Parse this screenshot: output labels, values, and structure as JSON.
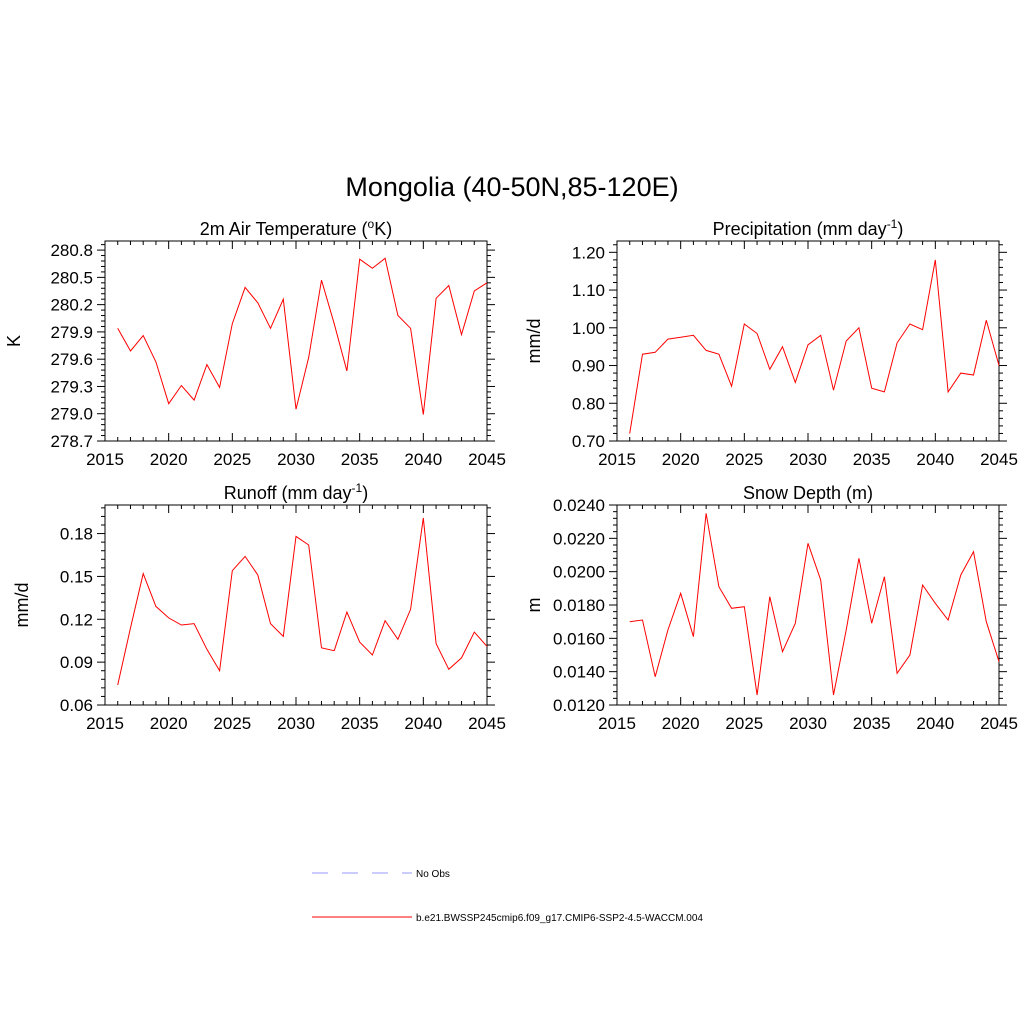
{
  "figure": {
    "title": "Mongolia (40-50N,85-120E)"
  },
  "legend": [
    {
      "label": "No Obs",
      "color": "#9999ff",
      "dash": "dashed"
    },
    {
      "label": "b.e21.BWSSP245cmip6.f09_g17.CMIP6-SSP2-4.5-WACCM.004",
      "color": "#ff0000",
      "dash": "solid"
    }
  ],
  "chart_data": [
    {
      "id": "temperature",
      "type": "line",
      "title": "2m Air Temperature",
      "title_parts": [
        "2m Air Temperature (",
        "o",
        "K)"
      ],
      "ylabel": "K",
      "xlim": [
        2015,
        2045
      ],
      "ylim": [
        278.7,
        280.9
      ],
      "xticks": [
        2015,
        2020,
        2025,
        2030,
        2035,
        2040,
        2045
      ],
      "yticks": [
        278.7,
        279.0,
        279.3,
        279.6,
        279.9,
        280.2,
        280.5,
        280.8
      ],
      "yticklabels": [
        "278.7",
        "279.0",
        "279.3",
        "279.6",
        "279.9",
        "280.2",
        "280.5",
        "280.8"
      ],
      "grid": false,
      "series": [
        {
          "color": "#ff0000",
          "x": [
            2016,
            2017,
            2018,
            2019,
            2020,
            2021,
            2022,
            2023,
            2024,
            2025,
            2026,
            2027,
            2028,
            2029,
            2030,
            2031,
            2032,
            2033,
            2034,
            2035,
            2036,
            2037,
            2038,
            2039,
            2040,
            2041,
            2042,
            2043,
            2044,
            2045
          ],
          "values": [
            279.94,
            279.69,
            279.86,
            279.57,
            279.11,
            279.31,
            279.15,
            279.54,
            279.29,
            279.99,
            280.39,
            280.22,
            279.94,
            280.26,
            279.05,
            279.62,
            280.47,
            279.99,
            279.47,
            280.7,
            280.6,
            280.71,
            280.08,
            279.94,
            278.99,
            280.27,
            280.41,
            279.87,
            280.35,
            280.44
          ]
        }
      ]
    },
    {
      "id": "precipitation",
      "type": "line",
      "title": "Precipitation",
      "title_parts": [
        "Precipitation (mm day",
        "-1",
        ")"
      ],
      "ylabel": "mm/d",
      "xlim": [
        2015,
        2045
      ],
      "ylim": [
        0.7,
        1.23
      ],
      "xticks": [
        2015,
        2020,
        2025,
        2030,
        2035,
        2040,
        2045
      ],
      "yticks": [
        0.7,
        0.8,
        0.9,
        1.0,
        1.1,
        1.2
      ],
      "yticklabels": [
        "0.70",
        "0.80",
        "0.90",
        "1.00",
        "1.10",
        "1.20"
      ],
      "grid": false,
      "series": [
        {
          "color": "#ff0000",
          "x": [
            2016,
            2017,
            2018,
            2019,
            2020,
            2021,
            2022,
            2023,
            2024,
            2025,
            2026,
            2027,
            2028,
            2029,
            2030,
            2031,
            2032,
            2033,
            2034,
            2035,
            2036,
            2037,
            2038,
            2039,
            2040,
            2041,
            2042,
            2043,
            2044,
            2045
          ],
          "values": [
            0.72,
            0.93,
            0.935,
            0.97,
            0.975,
            0.98,
            0.94,
            0.93,
            0.845,
            1.01,
            0.985,
            0.89,
            0.95,
            0.855,
            0.955,
            0.98,
            0.835,
            0.965,
            1.0,
            0.84,
            0.83,
            0.96,
            1.01,
            0.995,
            1.18,
            0.83,
            0.88,
            0.875,
            1.02,
            0.9
          ]
        }
      ]
    },
    {
      "id": "runoff",
      "type": "line",
      "title": "Runoff",
      "title_parts": [
        "Runoff (mm day",
        "-1",
        ")"
      ],
      "ylabel": "mm/d",
      "xlim": [
        2015,
        2045
      ],
      "ylim": [
        0.06,
        0.2
      ],
      "xticks": [
        2015,
        2020,
        2025,
        2030,
        2035,
        2040,
        2045
      ],
      "yticks": [
        0.06,
        0.09,
        0.12,
        0.15,
        0.18
      ],
      "yticklabels": [
        "0.06",
        "0.09",
        "0.12",
        "0.15",
        "0.18"
      ],
      "grid": false,
      "series": [
        {
          "color": "#ff0000",
          "x": [
            2016,
            2017,
            2018,
            2019,
            2020,
            2021,
            2022,
            2023,
            2024,
            2025,
            2026,
            2027,
            2028,
            2029,
            2030,
            2031,
            2032,
            2033,
            2034,
            2035,
            2036,
            2037,
            2038,
            2039,
            2040,
            2041,
            2042,
            2043,
            2044,
            2045
          ],
          "values": [
            0.074,
            0.114,
            0.152,
            0.129,
            0.121,
            0.116,
            0.117,
            0.099,
            0.084,
            0.154,
            0.164,
            0.151,
            0.117,
            0.108,
            0.178,
            0.172,
            0.1,
            0.098,
            0.125,
            0.104,
            0.095,
            0.119,
            0.106,
            0.127,
            0.191,
            0.103,
            0.085,
            0.093,
            0.111,
            0.101
          ]
        }
      ]
    },
    {
      "id": "snow-depth",
      "type": "line",
      "title": "Snow Depth",
      "title_parts": [
        "Snow Depth (m)",
        "",
        ""
      ],
      "ylabel": "m",
      "xlim": [
        2015,
        2045
      ],
      "ylim": [
        0.012,
        0.024
      ],
      "xticks": [
        2015,
        2020,
        2025,
        2030,
        2035,
        2040,
        2045
      ],
      "yticks": [
        0.012,
        0.014,
        0.016,
        0.018,
        0.02,
        0.022,
        0.024
      ],
      "yticklabels": [
        "0.0120",
        "0.0140",
        "0.0160",
        "0.0180",
        "0.0200",
        "0.0220",
        "0.0240"
      ],
      "grid": false,
      "series": [
        {
          "color": "#ff0000",
          "x": [
            2016,
            2017,
            2018,
            2019,
            2020,
            2021,
            2022,
            2023,
            2024,
            2025,
            2026,
            2027,
            2028,
            2029,
            2030,
            2031,
            2032,
            2033,
            2034,
            2035,
            2036,
            2037,
            2038,
            2039,
            2040,
            2041,
            2042,
            2043,
            2044,
            2045
          ],
          "values": [
            0.017,
            0.0171,
            0.0137,
            0.0165,
            0.0187,
            0.0161,
            0.0235,
            0.0191,
            0.0178,
            0.0179,
            0.0126,
            0.0185,
            0.0152,
            0.0169,
            0.0217,
            0.0195,
            0.0126,
            0.0165,
            0.0208,
            0.0169,
            0.0197,
            0.0139,
            0.015,
            0.0192,
            0.0181,
            0.0171,
            0.0198,
            0.0212,
            0.017,
            0.0146
          ]
        }
      ]
    }
  ]
}
